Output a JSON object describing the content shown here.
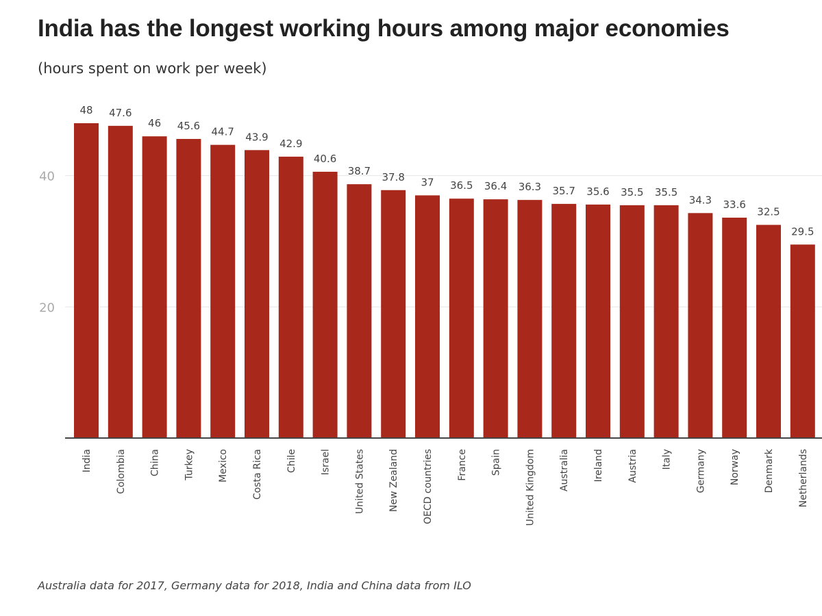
{
  "header": {
    "title": "India has the longest working hours among major economies",
    "subtitle": "(hours spent on work per week)"
  },
  "footer": {
    "note": "Australia data for 2017, Germany data for 2018, India and China data from ILO"
  },
  "chart_data": {
    "type": "bar",
    "title": "India has the longest working hours among major economies",
    "subtitle": "(hours spent on work per week)",
    "xlabel": "",
    "ylabel": "",
    "ylim": [
      0,
      48
    ],
    "yticks": [
      20,
      40
    ],
    "grid": true,
    "bar_color": "#a8291b",
    "categories": [
      "India",
      "Colombia",
      "China",
      "Turkey",
      "Mexico",
      "Costa Rica",
      "Chile",
      "Israel",
      "United States",
      "New Zealand",
      "OECD countries",
      "France",
      "Spain",
      "United Kingdom",
      "Australia",
      "Ireland",
      "Austria",
      "Italy",
      "Germany",
      "Norway",
      "Denmark",
      "Netherlands"
    ],
    "values": [
      48,
      47.6,
      46,
      45.6,
      44.7,
      43.9,
      42.9,
      40.6,
      38.7,
      37.8,
      37,
      36.5,
      36.4,
      36.3,
      35.7,
      35.6,
      35.5,
      35.5,
      34.3,
      33.6,
      32.5,
      29.5
    ],
    "value_labels": [
      "48",
      "47.6",
      "46",
      "45.6",
      "44.7",
      "43.9",
      "42.9",
      "40.6",
      "38.7",
      "37.8",
      "37",
      "36.5",
      "36.4",
      "36.3",
      "35.7",
      "35.6",
      "35.5",
      "35.5",
      "34.3",
      "33.6",
      "32.5",
      "29.5"
    ]
  }
}
